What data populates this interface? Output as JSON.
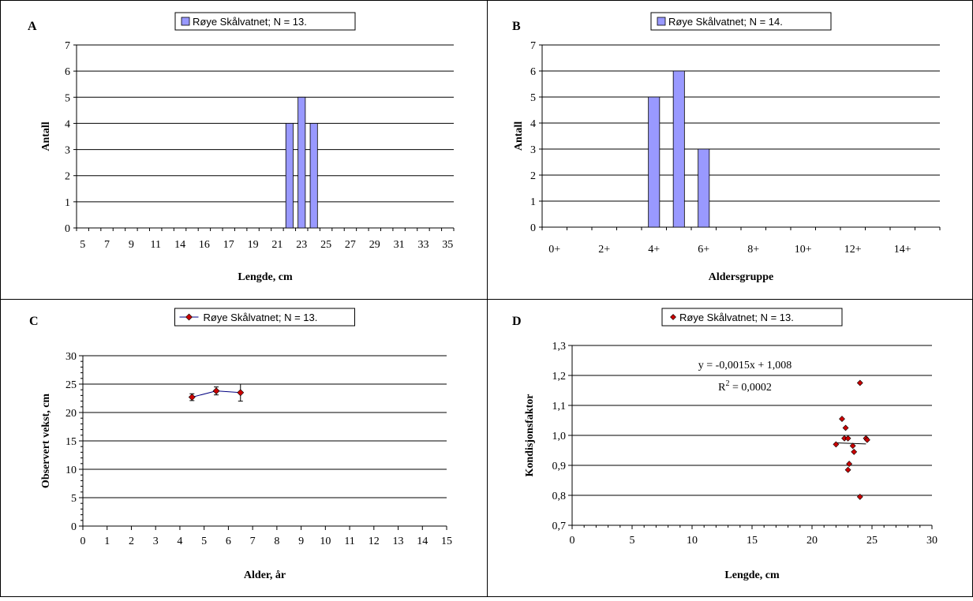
{
  "panels": [
    {
      "id": "A",
      "letter": "A",
      "chart_data": {
        "type": "bar",
        "legend": "Røye Skålvatnet; N =  13.",
        "legend_position": "top-center",
        "xlabel": "Lengde, cm",
        "ylabel": "Antall",
        "ylim": [
          0,
          7
        ],
        "yticks": [
          "0",
          "1",
          "2",
          "3",
          "4",
          "5",
          "6",
          "7"
        ],
        "x_range": [
          5,
          35
        ],
        "xtick_labels": [
          "5",
          "7",
          "9",
          "11",
          "14",
          "16",
          "17",
          "19",
          "21",
          "23",
          "25",
          "27",
          "29",
          "31",
          "33",
          "35"
        ],
        "categories": [
          22,
          23,
          24
        ],
        "values": [
          4,
          5,
          4
        ],
        "bar_color": "#9999ff",
        "grid": true
      }
    },
    {
      "id": "B",
      "letter": "B",
      "chart_data": {
        "type": "bar",
        "legend": "Røye Skålvatnet; N =  14.",
        "legend_position": "top-center",
        "xlabel": "Aldersgruppe",
        "ylabel": "Antall",
        "ylim": [
          0,
          7
        ],
        "yticks": [
          "0",
          "1",
          "2",
          "3",
          "4",
          "5",
          "6",
          "7"
        ],
        "xtick_labels": [
          "0+",
          "2+",
          "4+",
          "6+",
          "8+",
          "10+",
          "12+",
          "14+"
        ],
        "categories": [
          "4+",
          "5+",
          "6+"
        ],
        "category_index": [
          4,
          5,
          6
        ],
        "values": [
          5,
          6,
          3
        ],
        "bar_color": "#9999ff",
        "grid": true
      }
    },
    {
      "id": "C",
      "letter": "C",
      "chart_data": {
        "type": "line",
        "legend": "Røye Skålvatnet; N =  13.",
        "legend_position": "top-center",
        "xlabel": "Alder, år",
        "ylabel": "Observert vekst, cm",
        "xlim": [
          0,
          15
        ],
        "ylim": [
          0,
          30
        ],
        "xticks": [
          "0",
          "1",
          "2",
          "3",
          "4",
          "5",
          "6",
          "7",
          "8",
          "9",
          "10",
          "11",
          "12",
          "13",
          "14",
          "15"
        ],
        "yticks": [
          "0",
          "5",
          "10",
          "15",
          "20",
          "25",
          "30"
        ],
        "series": [
          {
            "name": "Røye Skålvatnet; N =  13.",
            "x": [
              4.5,
              5.5,
              6.5
            ],
            "y": [
              22.7,
              23.8,
              23.5
            ],
            "err": [
              0.6,
              0.7,
              1.5
            ]
          }
        ],
        "line_color": "#000080",
        "marker_color": "#cc0000",
        "grid": true
      }
    },
    {
      "id": "D",
      "letter": "D",
      "chart_data": {
        "type": "scatter",
        "legend": "Røye Skålvatnet; N =  13.",
        "legend_position": "top-center",
        "xlabel": "Lengde, cm",
        "ylabel": "Kondisjonsfaktor",
        "xlim": [
          0,
          30
        ],
        "ylim": [
          0.7,
          1.3
        ],
        "xticks": [
          "0",
          "5",
          "10",
          "15",
          "20",
          "25",
          "30"
        ],
        "yticks": [
          "0,7",
          "0,8",
          "0,9",
          "1,0",
          "1,1",
          "1,2",
          "1,3"
        ],
        "equation": "y = -0,0015x + 1,008",
        "r2_base": "R",
        "r2_sup": "2",
        "r2_value": " = 0,0002",
        "trendline": {
          "slope": -0.0015,
          "intercept": 1.008,
          "x_from": 22,
          "x_to": 24.5
        },
        "points": [
          {
            "x": 22.0,
            "y": 0.97
          },
          {
            "x": 22.5,
            "y": 1.055
          },
          {
            "x": 22.8,
            "y": 1.025
          },
          {
            "x": 22.7,
            "y": 0.99
          },
          {
            "x": 23.0,
            "y": 0.99
          },
          {
            "x": 23.1,
            "y": 0.905
          },
          {
            "x": 23.0,
            "y": 0.885
          },
          {
            "x": 23.4,
            "y": 0.965
          },
          {
            "x": 23.5,
            "y": 0.945
          },
          {
            "x": 24.0,
            "y": 1.175
          },
          {
            "x": 24.0,
            "y": 0.795
          },
          {
            "x": 24.5,
            "y": 0.99
          },
          {
            "x": 24.6,
            "y": 0.985
          }
        ],
        "marker_color": "#cc0000",
        "grid": true
      }
    }
  ]
}
